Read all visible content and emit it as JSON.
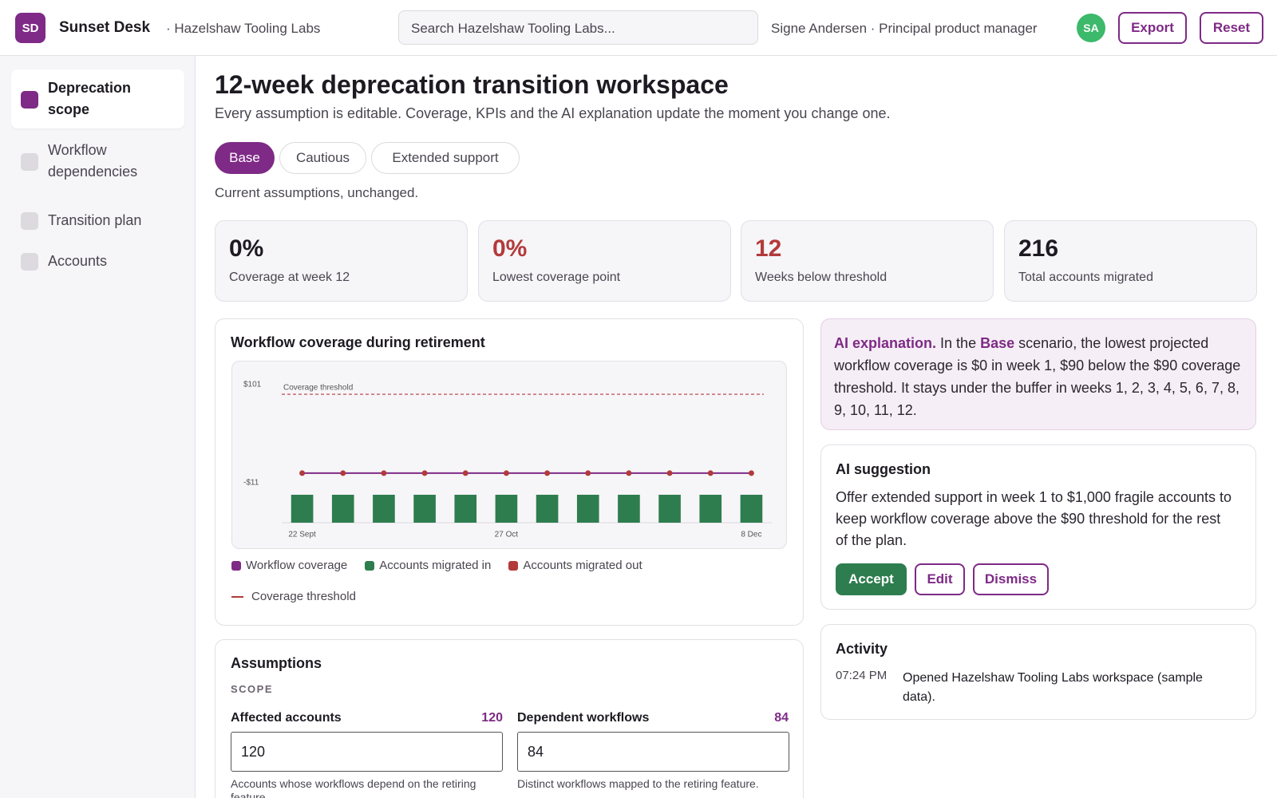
{
  "header": {
    "logo": "SD",
    "app": "Sunset Desk",
    "org": "· Hazelshaw Tooling Labs",
    "search_placeholder": "Search Hazelshaw Tooling Labs...",
    "user": "Signe Andersen · Principal product manager",
    "avatar": "SA",
    "buttons": [
      "Export",
      "Reset"
    ]
  },
  "sidebar": {
    "items": [
      "Deprecation scope",
      "Workflow dependencies",
      "Transition plan",
      "Accounts"
    ]
  },
  "main": {
    "title": "12-week deprecation transition workspace",
    "subtitle": "Every assumption is editable. Coverage, KPIs and the AI explanation update the moment you change one.",
    "tabs": [
      "Base",
      "Cautious",
      "Extended support"
    ],
    "tab_note": "Current assumptions, unchanged.",
    "kpis": [
      {
        "value": "0%",
        "label": "Coverage at week 12"
      },
      {
        "value": "0%",
        "label": "Lowest coverage point"
      },
      {
        "value": "12",
        "label": "Weeks below threshold"
      },
      {
        "value": "216",
        "label": "Total accounts migrated"
      }
    ]
  },
  "chart_panel": {
    "title": "Workflow coverage during retirement"
  },
  "chart_data": {
    "type": "combo",
    "ylim": [
      -11,
      101
    ],
    "yticks": [
      {
        "value": 101,
        "label": "$101"
      },
      {
        "value": -11,
        "label": "-$11"
      }
    ],
    "categories": [
      "22 Sept",
      null,
      null,
      null,
      null,
      "27 Oct",
      null,
      null,
      null,
      null,
      null,
      "8 Dec"
    ],
    "series": [
      {
        "name": "Workflow coverage",
        "type": "line",
        "color": "#7e2a86",
        "values": [
          0,
          0,
          0,
          0,
          0,
          0,
          0,
          0,
          0,
          0,
          0,
          0
        ]
      },
      {
        "name": "Accounts migrated in",
        "type": "bar",
        "color": "#2e7d4f",
        "values": [
          18,
          18,
          18,
          18,
          18,
          18,
          18,
          18,
          18,
          18,
          18,
          18
        ]
      },
      {
        "name": "Accounts migrated out",
        "type": "bar",
        "color": "#b23a3a",
        "values": [
          0,
          0,
          0,
          0,
          0,
          0,
          0,
          0,
          0,
          0,
          0,
          0
        ]
      }
    ],
    "threshold": {
      "name": "Coverage threshold",
      "value": 90,
      "color": "#b23a3a"
    }
  },
  "ai_explanation": {
    "lead": "AI explanation.",
    "text_1": "In the",
    "scenario": "Base",
    "text_2": "scenario, the lowest projected workflow coverage is $0 in week 1, $90 below the $90 coverage threshold. It stays under the buffer in weeks 1, 2, 3, 4, 5, 6, 7, 8, 9, 10, 11, 12."
  },
  "ai_suggestion": {
    "title": "AI suggestion",
    "text": "Offer extended support in week 1 to $1,000 fragile accounts to keep workflow coverage above the $90 threshold for the rest of the plan.",
    "buttons": [
      "Accept",
      "Edit",
      "Dismiss"
    ]
  },
  "activity": {
    "title": "Activity",
    "entries": [
      {
        "time": "07:24 PM",
        "text": "Opened Hazelshaw Tooling Labs workspace (sample data)."
      }
    ]
  },
  "assumptions": {
    "title": "Assumptions",
    "section": "SCOPE",
    "fields": [
      {
        "label": "Affected accounts",
        "value": "120",
        "help": "Accounts whose workflows depend on the retiring feature."
      },
      {
        "label": "Dependent workflows",
        "value": "84",
        "help": "Distinct workflows mapped to the retiring feature."
      }
    ]
  }
}
